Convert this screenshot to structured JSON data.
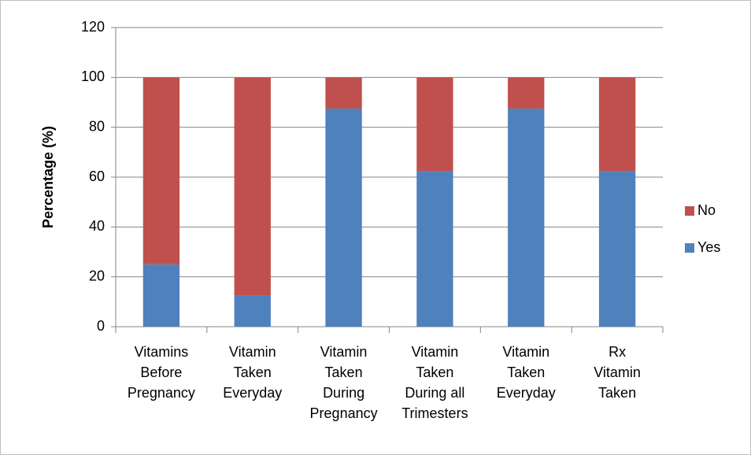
{
  "chart_data": {
    "type": "stacked_bar",
    "y_label": "Percentage (%)",
    "categories": [
      [
        "Vitamins",
        "Before",
        "Pregnancy"
      ],
      [
        "Vitamin",
        "Taken",
        "Everyday"
      ],
      [
        "Vitamin",
        "Taken",
        "During",
        "Pregnancy"
      ],
      [
        "Vitamin",
        "Taken",
        "During all",
        "Trimesters"
      ],
      [
        "Vitamin",
        "Taken",
        "Everyday"
      ],
      [
        "Rx",
        "Vitamin",
        "Taken"
      ]
    ],
    "series": [
      {
        "name": "Yes",
        "color": "#4f81bd",
        "values": [
          25,
          12.5,
          87.5,
          62.5,
          87.5,
          62.5
        ]
      },
      {
        "name": "No",
        "color": "#c0504d",
        "values": [
          75,
          87.5,
          12.5,
          37.5,
          12.5,
          37.5
        ]
      }
    ],
    "ylim": [
      0,
      120
    ],
    "yticks": [
      0,
      20,
      40,
      60,
      80,
      100,
      120
    ],
    "grid": true,
    "legend": "right"
  }
}
